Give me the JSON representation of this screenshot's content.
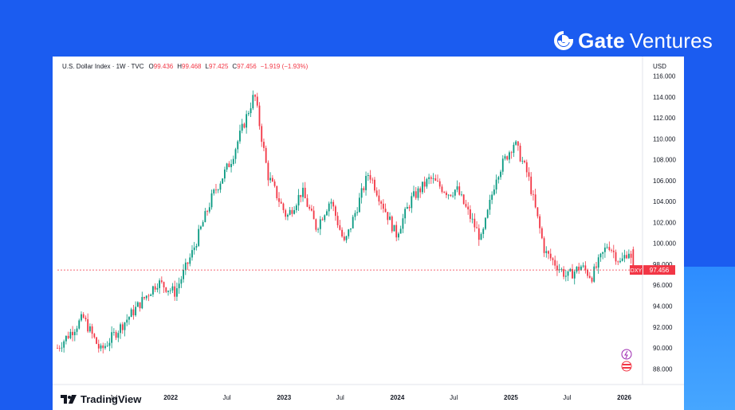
{
  "brand": {
    "name_bold": "Gate",
    "name_light": "Ventures",
    "icon": "gate-logo-icon"
  },
  "colors": {
    "background": "#1b5cf0",
    "up": "#089981",
    "down": "#f23645",
    "last_price_line": "#f23645"
  },
  "header": {
    "symbol": "U.S. Dollar Index · 1W · TVC",
    "open_label": "O",
    "open": "99.436",
    "high_label": "H",
    "high": "99.468",
    "low_label": "L",
    "low": "97.425",
    "close_label": "C",
    "close": "97.456",
    "change": "−1.919 (−1.93%)",
    "currency": "USD"
  },
  "footer": {
    "logo_text": "TradingView",
    "icon": "tradingview-logo-icon"
  },
  "chart_data": {
    "type": "candlestick",
    "title": "U.S. Dollar Index · 1W · TVC",
    "ylabel": "USD",
    "ylim": [
      86.5,
      116.5
    ],
    "y_ticks": [
      "116.000",
      "114.000",
      "112.000",
      "110.000",
      "108.000",
      "106.000",
      "104.000",
      "102.000",
      "100.000",
      "98.000",
      "96.000",
      "94.000",
      "92.000",
      "90.000",
      "88.000"
    ],
    "x_ticks": [
      {
        "label": "Jul",
        "date": "2021-07-01"
      },
      {
        "label": "2022",
        "date": "2022-01-01"
      },
      {
        "label": "Jul",
        "date": "2022-07-01"
      },
      {
        "label": "2023",
        "date": "2023-01-01"
      },
      {
        "label": "Jul",
        "date": "2023-07-01"
      },
      {
        "label": "2024",
        "date": "2024-01-01"
      },
      {
        "label": "Jul",
        "date": "2024-07-01"
      },
      {
        "label": "2025",
        "date": "2025-01-01"
      },
      {
        "label": "Jul",
        "date": "2025-07-01"
      },
      {
        "label": "2026",
        "date": "2026-01-01"
      }
    ],
    "x_range": [
      "2021-01-01",
      "2026-03-01"
    ],
    "last_price": {
      "symbol": "DXY",
      "value": "97.456"
    },
    "closes": [
      {
        "date": "2021-01-01",
        "close": 90.0
      },
      {
        "date": "2021-03-25",
        "close": 92.9
      },
      {
        "date": "2021-05-20",
        "close": 89.7
      },
      {
        "date": "2021-08-20",
        "close": 93.0
      },
      {
        "date": "2021-11-20",
        "close": 96.3
      },
      {
        "date": "2022-01-15",
        "close": 95.3
      },
      {
        "date": "2022-03-10",
        "close": 99.0
      },
      {
        "date": "2022-05-15",
        "close": 104.5
      },
      {
        "date": "2022-07-15",
        "close": 108.0
      },
      {
        "date": "2022-09-28",
        "close": 114.3
      },
      {
        "date": "2022-11-10",
        "close": 106.5
      },
      {
        "date": "2023-01-10",
        "close": 102.5
      },
      {
        "date": "2023-02-28",
        "close": 105.0
      },
      {
        "date": "2023-04-15",
        "close": 101.5
      },
      {
        "date": "2023-05-31",
        "close": 104.2
      },
      {
        "date": "2023-07-15",
        "close": 99.9
      },
      {
        "date": "2023-10-01",
        "close": 106.8
      },
      {
        "date": "2023-12-28",
        "close": 100.8
      },
      {
        "date": "2024-02-15",
        "close": 104.2
      },
      {
        "date": "2024-04-15",
        "close": 106.2
      },
      {
        "date": "2024-06-15",
        "close": 104.8
      },
      {
        "date": "2024-07-10",
        "close": 105.2
      },
      {
        "date": "2024-09-28",
        "close": 100.3
      },
      {
        "date": "2024-11-15",
        "close": 106.5
      },
      {
        "date": "2025-01-12",
        "close": 109.7
      },
      {
        "date": "2025-02-25",
        "close": 106.5
      },
      {
        "date": "2025-04-20",
        "close": 99.2
      },
      {
        "date": "2025-07-01",
        "close": 96.8
      },
      {
        "date": "2025-08-15",
        "close": 97.8
      },
      {
        "date": "2025-09-18",
        "close": 96.8
      },
      {
        "date": "2025-11-10",
        "close": 100.0
      },
      {
        "date": "2025-12-20",
        "close": 98.1
      },
      {
        "date": "2026-01-15",
        "close": 99.4
      },
      {
        "date": "2026-01-30",
        "close": 97.456
      }
    ]
  }
}
